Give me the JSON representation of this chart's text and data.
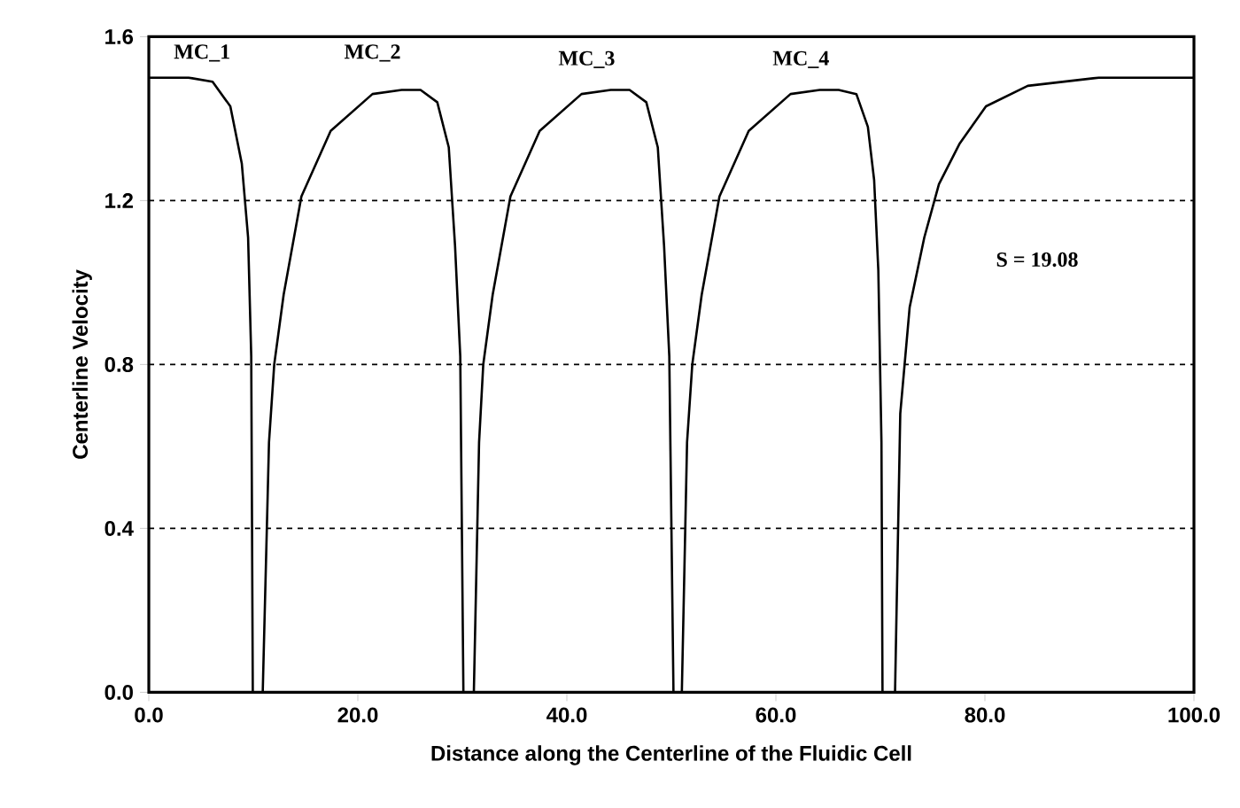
{
  "chart_data": {
    "type": "line",
    "xlabel": "Distance along the Centerline of the Fluidic Cell",
    "ylabel": "Centerline Velocity",
    "x": [
      0,
      3.8,
      6.1,
      7.8,
      8.9,
      9.5,
      9.8,
      9.95,
      10.9,
      11.5,
      12.0,
      12.9,
      14.6,
      17.4,
      21.4,
      24.2,
      26.0,
      27.6,
      28.7,
      29.3,
      29.8,
      30.1,
      31.1,
      31.6,
      32.0,
      32.9,
      34.6,
      37.4,
      41.4,
      44.2,
      46.0,
      47.6,
      48.7,
      49.3,
      49.8,
      50.2,
      51.0,
      51.5,
      52.0,
      52.9,
      54.6,
      57.4,
      61.4,
      64.2,
      66.0,
      67.7,
      68.8,
      69.4,
      69.8,
      70.1,
      70.2,
      71.4,
      71.9,
      72.8,
      74.2,
      75.6,
      77.6,
      80.1,
      84.1,
      90.9,
      100
    ],
    "series": [
      {
        "color": "#000000",
        "values": [
          1.5,
          1.5,
          1.49,
          1.43,
          1.29,
          1.11,
          0.82,
          0,
          0,
          0.61,
          0.8,
          0.97,
          1.21,
          1.37,
          1.46,
          1.47,
          1.47,
          1.44,
          1.33,
          1.09,
          0.82,
          0,
          0,
          0.61,
          0.8,
          0.97,
          1.21,
          1.37,
          1.46,
          1.47,
          1.47,
          1.44,
          1.33,
          1.09,
          0.82,
          0,
          0,
          0.61,
          0.8,
          0.97,
          1.21,
          1.37,
          1.46,
          1.47,
          1.47,
          1.46,
          1.38,
          1.25,
          1.03,
          0.61,
          0,
          0,
          0.68,
          0.94,
          1.11,
          1.24,
          1.34,
          1.43,
          1.48,
          1.5,
          1.5
        ]
      }
    ],
    "xlim": [
      0,
      100
    ],
    "ylim": [
      0,
      1.6
    ],
    "xticks": [
      {
        "value": 0,
        "label": "0.0"
      },
      {
        "value": 20,
        "label": "20.0"
      },
      {
        "value": 40,
        "label": "40.0"
      },
      {
        "value": 60,
        "label": "60.0"
      },
      {
        "value": 80,
        "label": "80.0"
      },
      {
        "value": 100,
        "label": "100.0"
      }
    ],
    "yticks": [
      {
        "value": 0,
        "label": "0.0"
      },
      {
        "value": 0.4,
        "label": "0.4"
      },
      {
        "value": 0.8,
        "label": "0.8"
      },
      {
        "value": 1.2,
        "label": "1.2"
      },
      {
        "value": 1.6,
        "label": "1.6"
      }
    ],
    "grid": "y",
    "line_style": "solid",
    "marker": "none",
    "annotations": [
      "MC_1",
      "MC_2",
      "MC_3",
      "MC_4",
      "S = 19.08"
    ]
  }
}
